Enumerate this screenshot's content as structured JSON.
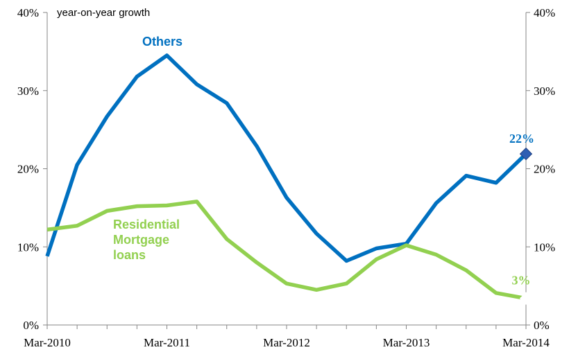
{
  "chart_data": {
    "type": "line",
    "unit_label": "year-on-year growth",
    "x_tick_labels": [
      "Mar-2010",
      "Mar-2011",
      "Mar-2012",
      "Mar-2013",
      "Mar-2014"
    ],
    "y_tick_labels": [
      "0%",
      "10%",
      "20%",
      "30%",
      "40%"
    ],
    "ylim": [
      0,
      40
    ],
    "y_ticks": [
      0,
      10,
      20,
      30,
      40
    ],
    "x_points": 17,
    "series": [
      {
        "name": "Others",
        "color": "#0070C0",
        "values": [
          8.8,
          20.5,
          26.7,
          31.8,
          34.5,
          30.8,
          28.4,
          22.9,
          16.3,
          11.7,
          8.2,
          9.8,
          10.4,
          15.6,
          19.1,
          18.2,
          21.9
        ],
        "end_label": "22%"
      },
      {
        "name": "Residential\nMortgage\nloans",
        "color": "#92D050",
        "values": [
          12.2,
          12.7,
          14.6,
          15.2,
          15.3,
          15.8,
          11.0,
          8.0,
          5.3,
          4.5,
          5.3,
          8.4,
          10.2,
          9.0,
          7.0,
          4.1,
          3.4
        ],
        "end_label": "3%"
      }
    ],
    "grid": false,
    "legend": "none"
  }
}
